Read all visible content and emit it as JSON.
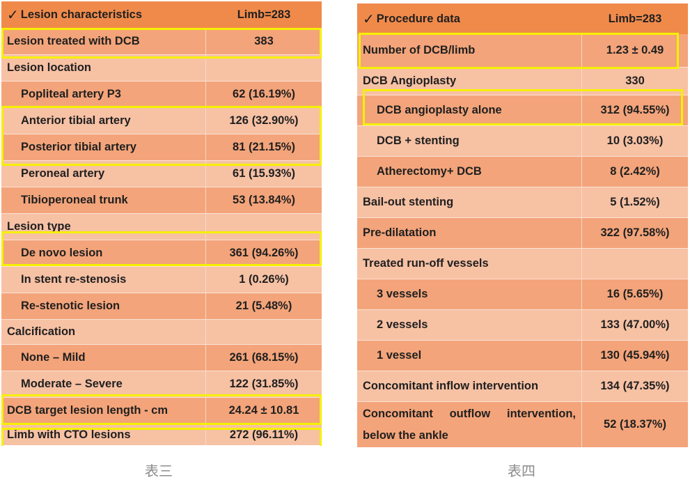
{
  "table3": {
    "header": {
      "label": "Lesion characteristics",
      "value": "Limb=283",
      "check": "✓"
    },
    "rows": [
      {
        "label": "Lesion treated with DCB",
        "value": "383"
      },
      {
        "label": "Lesion location",
        "value": ""
      },
      {
        "label": "Popliteal artery P3",
        "value": "62 (16.19%)"
      },
      {
        "label": "Anterior tibial artery",
        "value": "126 (32.90%)"
      },
      {
        "label": "Posterior tibial artery",
        "value": "81 (21.15%)"
      },
      {
        "label": "Peroneal artery",
        "value": "61 (15.93%)"
      },
      {
        "label": "Tibioperoneal trunk",
        "value": "53 (13.84%)"
      },
      {
        "label": "Lesion type",
        "value": ""
      },
      {
        "label": "De novo lesion",
        "value": "361 (94.26%)"
      },
      {
        "label": "In stent re-stenosis",
        "value": "1 (0.26%)"
      },
      {
        "label": "Re-stenotic lesion",
        "value": "21 (5.48%)"
      },
      {
        "label": "Calcification",
        "value": ""
      },
      {
        "label": "None – Mild",
        "value": "261 (68.15%)"
      },
      {
        "label": "Moderate – Severe",
        "value": "122 (31.85%)"
      },
      {
        "label": "DCB target lesion length - cm",
        "value": "24.24 ± 10.81"
      },
      {
        "label": "Limb with CTO lesions",
        "value": "272 (96.11%)"
      }
    ],
    "caption": "表三"
  },
  "table4": {
    "header": {
      "label": "Procedure data",
      "value": "Limb=283",
      "check": "✓"
    },
    "rows": [
      {
        "label": "Number of DCB/limb",
        "value": "1.23 ± 0.49"
      },
      {
        "label": "DCB Angioplasty",
        "value": "330"
      },
      {
        "label": "DCB angioplasty alone",
        "value": "312 (94.55%)"
      },
      {
        "label": "DCB + stenting",
        "value": "10 (3.03%)"
      },
      {
        "label": "Atherectomy+ DCB",
        "value": "8 (2.42%)"
      },
      {
        "label": "Bail-out stenting",
        "value": "5 (1.52%)"
      },
      {
        "label": "Pre-dilatation",
        "value": "322 (97.58%)"
      },
      {
        "label": "Treated run-off vessels",
        "value": ""
      },
      {
        "label": "3 vessels",
        "value": "16 (5.65%)"
      },
      {
        "label": "2 vessels",
        "value": "133 (47.00%)"
      },
      {
        "label": "1 vessel",
        "value": "130 (45.94%)"
      },
      {
        "label": "Concomitant inflow intervention",
        "value": "134 (47.35%)"
      },
      {
        "label_line1": "Concomitant  outflow  intervention,",
        "label_line2": "below the ankle",
        "value": "52 (18.37%)"
      }
    ],
    "caption": "表四"
  }
}
